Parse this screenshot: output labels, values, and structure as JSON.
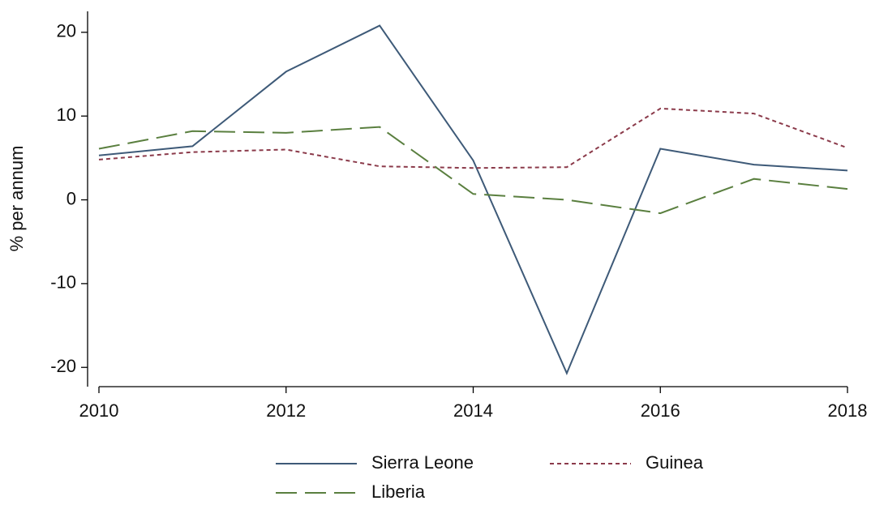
{
  "chart_data": {
    "type": "line",
    "y_label": "% per annum",
    "x": [
      2010,
      2011,
      2012,
      2013,
      2014,
      2015,
      2016,
      2017,
      2018
    ],
    "series": [
      {
        "name": "Sierra Leone",
        "color": "#3e5a78",
        "dash": "solid",
        "values": [
          5.3,
          6.4,
          15.3,
          20.8,
          4.7,
          -20.7,
          6.1,
          4.2,
          3.5
        ]
      },
      {
        "name": "Guinea",
        "color": "#8b3a4a",
        "dash": "dotted",
        "values": [
          4.8,
          5.7,
          6.0,
          4.0,
          3.8,
          3.9,
          10.9,
          10.3,
          6.2
        ]
      },
      {
        "name": "Liberia",
        "color": "#5a7f3f",
        "dash": "dashed",
        "values": [
          6.1,
          8.2,
          8.0,
          8.7,
          0.7,
          0.0,
          -1.6,
          2.5,
          1.3
        ]
      }
    ],
    "xlim": [
      2010,
      2018
    ],
    "xticks": [
      2010,
      2012,
      2014,
      2016,
      2018
    ],
    "ylim": [
      -22.3,
      22.5
    ],
    "yticks": [
      -20,
      -10,
      0,
      10,
      20
    ],
    "grid": false
  }
}
